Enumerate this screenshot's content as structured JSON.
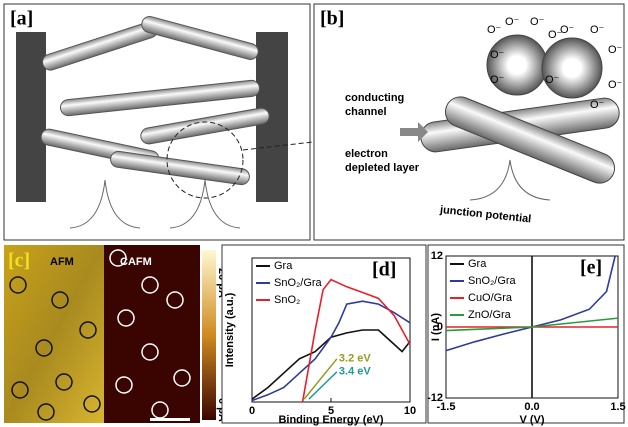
{
  "panels": {
    "a": {
      "label": "[a]"
    },
    "b": {
      "label": "[b]",
      "conducting": [
        "conducting",
        "channel"
      ],
      "depleted": [
        "electron",
        "depleted layer"
      ],
      "junction": "junction potential",
      "ions": [
        "O⁻",
        "O⁻",
        "O⁻",
        "O⁻",
        "O⁻",
        "O⁻",
        "O⁻",
        "O⁻",
        "O⁻",
        "O⁻",
        "O⁻",
        "O⁻"
      ]
    },
    "c": {
      "label": "[c]",
      "afm": "AFM",
      "cafm": "CAFM",
      "scale_top": "20 pA",
      "scale_bottom": "0 pA"
    }
  },
  "chart_data": [
    {
      "type": "line",
      "label": "[d]",
      "xlabel": "Binding Energy (eV)",
      "ylabel": "Intensity (a.u.)",
      "xlim": [
        0,
        10
      ],
      "xticks": [
        0,
        5,
        10
      ],
      "ylim": [
        0,
        1
      ],
      "series": [
        {
          "name": "Gra",
          "color": "#111111",
          "x": [
            0,
            1,
            2,
            3,
            4,
            5,
            6,
            7,
            8,
            9,
            9.5,
            10
          ],
          "values": [
            0.02,
            0.1,
            0.2,
            0.3,
            0.35,
            0.45,
            0.48,
            0.5,
            0.5,
            0.4,
            0.35,
            0.42
          ]
        },
        {
          "name": "SnO₂/Gra",
          "color": "#2d3a9e",
          "x": [
            0,
            1,
            2,
            3,
            4,
            5,
            5.5,
            6,
            7,
            8,
            9,
            10
          ],
          "values": [
            0.01,
            0.05,
            0.1,
            0.2,
            0.3,
            0.45,
            0.55,
            0.68,
            0.7,
            0.68,
            0.62,
            0.55
          ]
        },
        {
          "name": "SnO₂",
          "color": "#e8202a",
          "x": [
            3.2,
            4,
            4.5,
            5,
            6,
            7,
            8,
            9,
            10
          ],
          "values": [
            0,
            0.5,
            0.78,
            0.85,
            0.8,
            0.76,
            0.72,
            0.6,
            0.4
          ]
        }
      ],
      "annotations": [
        {
          "text": "3.2 eV",
          "color": "#9a9a20"
        },
        {
          "text": "3.4 eV",
          "color": "#1f9a9a"
        }
      ]
    },
    {
      "type": "line",
      "label": "[e]",
      "xlabel": "V (V)",
      "ylabel": "I (nA)",
      "xlim": [
        -1.5,
        1.5
      ],
      "xticks": [
        -1.5,
        {
          "value": 0,
          "label": "0.0"
        },
        1.5
      ],
      "ylim": [
        -12,
        12
      ],
      "yticks": [
        -12,
        0,
        12
      ],
      "series": [
        {
          "name": "Gra",
          "color": "#111111",
          "x": [
            0,
            0
          ],
          "values": [
            -12,
            12
          ]
        },
        {
          "name": "SnO₂/Gra",
          "color": "#2d3a9e",
          "x": [
            -1.5,
            -1,
            -0.5,
            0,
            0.5,
            1,
            1.3,
            1.45
          ],
          "values": [
            -4,
            -2.5,
            -1.2,
            0,
            1.2,
            3,
            6,
            12
          ]
        },
        {
          "name": "CuO/Gra",
          "color": "#e8202a",
          "x": [
            -1.5,
            1.5
          ],
          "values": [
            0,
            0
          ]
        },
        {
          "name": "ZnO/Gra",
          "color": "#2a9a3a",
          "x": [
            -1.5,
            0,
            1.5
          ],
          "values": [
            -0.6,
            0,
            1.5
          ]
        }
      ]
    }
  ]
}
